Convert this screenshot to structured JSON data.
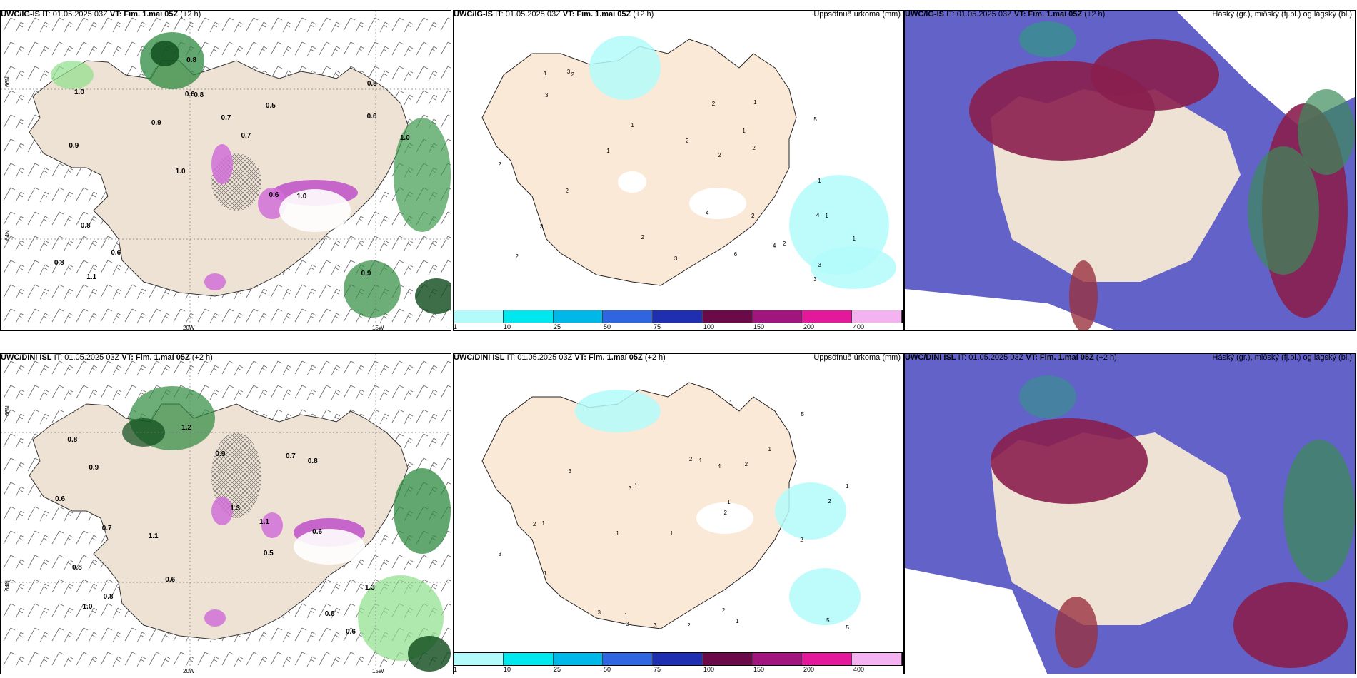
{
  "panels": [
    {
      "model": "UWC/IG-IS",
      "issue": "IT: 01.05.2025 03Z",
      "vt_label": "VT:",
      "valid": "Fim. 1.maí 05Z",
      "lead": "(+2 h)",
      "right_title": "",
      "type": "wind"
    },
    {
      "model": "UWC/IG-IS",
      "issue": "IT: 01.05.2025 03Z",
      "vt_label": "VT:",
      "valid": "Fim. 1.maí 05Z",
      "lead": "(+2 h)",
      "right_title": "Uppsöfnuð úrkoma (mm)",
      "type": "precip"
    },
    {
      "model": "UWC/IG-IS",
      "issue": "IT: 01.05.2025 03Z",
      "vt_label": "VT:",
      "valid": "Fim. 1.maí 05Z",
      "lead": "(+2 h)",
      "right_title": "Háský (gr.), miðský (fj.bl.) og lágský (bl.)",
      "type": "cloud"
    },
    {
      "model": "UWC/DINI ISL",
      "issue": "IT: 01.05.2025 03Z",
      "vt_label": "VT:",
      "valid": "Fim. 1.maí 05Z",
      "lead": "(+2 h)",
      "right_title": "",
      "type": "wind"
    },
    {
      "model": "UWC/DINI ISL",
      "issue": "IT: 01.05.2025 03Z",
      "vt_label": "VT:",
      "valid": "Fim. 1.maí 05Z",
      "lead": "(+2 h)",
      "right_title": "Uppsöfnuð úrkoma (mm)",
      "type": "precip"
    },
    {
      "model": "UWC/DINI ISL",
      "issue": "IT: 01.05.2025 03Z",
      "vt_label": "VT:",
      "valid": "Fim. 1.maí 05Z",
      "lead": "(+2 h)",
      "right_title": "Háský (gr.), miðský (fj.bl.) og lágský (bl.)",
      "type": "cloud"
    }
  ],
  "axes": {
    "lon_20": "20W",
    "lon_15": "15W",
    "lat_66": "66N",
    "lat_64": "64N"
  },
  "legend": {
    "colors": [
      "#b3fbfb",
      "#00e8ee",
      "#00b8e8",
      "#2f66e0",
      "#1f2fb0",
      "#6a0a48",
      "#a0157e",
      "#e3199c",
      "#f3b3f0"
    ],
    "ticks": [
      "1",
      "10",
      "25",
      "50",
      "75",
      "100",
      "150",
      "200",
      "400"
    ]
  },
  "wind_labels_top": [
    "0.9",
    "0.9",
    "0.5",
    "1.0",
    "0.5",
    "1.1",
    "0.6",
    "0.7",
    "0.8",
    "0.9",
    "0.8",
    "0.6",
    "0.8",
    "0.7",
    "1.0",
    "1.0",
    "0.8",
    "1.0",
    "0.6",
    "0.6"
  ],
  "wind_labels_bottom": [
    "0.6",
    "0.7",
    "0.5",
    "0.8",
    "1.3",
    "0.9",
    "0.8",
    "1.1",
    "0.8",
    "0.9",
    "0.7",
    "0.8",
    "0.6",
    "1.2",
    "1.1",
    "0.8",
    "0.6",
    "1.3",
    "0.6",
    "1.0"
  ],
  "precip_labels_top": [
    "3",
    "2",
    "4",
    "1",
    "2",
    "2",
    "2",
    "1",
    "1",
    "2",
    "2",
    "4",
    "1",
    "3",
    "4",
    "2",
    "3",
    "5",
    "3",
    "2",
    "2",
    "1",
    "1",
    "1",
    "3",
    "2",
    "4",
    "6",
    "3",
    "2"
  ],
  "precip_labels_bottom": [
    "2",
    "2",
    "5",
    "2",
    "1",
    "1",
    "1",
    "3",
    "1",
    "1",
    "1",
    "2",
    "3",
    "1",
    "2",
    "5",
    "3",
    "1",
    "4",
    "3",
    "1",
    "2",
    "5",
    "3",
    "2",
    "1",
    "2",
    "1",
    "3",
    "1"
  ]
}
